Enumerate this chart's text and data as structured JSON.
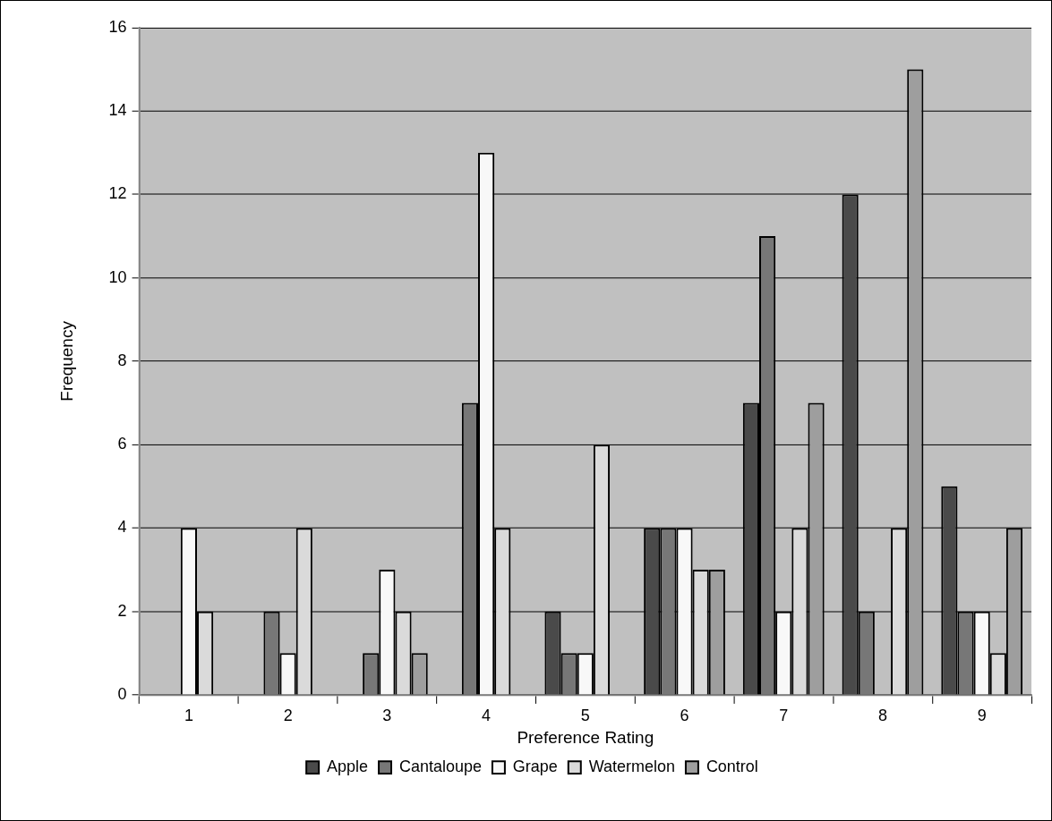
{
  "chart_data": {
    "type": "bar",
    "xlabel": "Preference Rating",
    "ylabel": "Frequency",
    "categories": [
      "1",
      "2",
      "3",
      "4",
      "5",
      "6",
      "7",
      "8",
      "9"
    ],
    "series": [
      {
        "name": "Apple",
        "color": "#4a4a4a",
        "values": [
          0,
          0,
          0,
          0,
          2,
          4,
          7,
          12,
          5
        ]
      },
      {
        "name": "Cantaloupe",
        "color": "#777777",
        "values": [
          0,
          2,
          1,
          7,
          1,
          4,
          11,
          2,
          2
        ]
      },
      {
        "name": "Grape",
        "color": "#f8f8f8",
        "values": [
          4,
          1,
          3,
          13,
          1,
          4,
          2,
          0,
          2
        ]
      },
      {
        "name": "Watermelon",
        "color": "#dadada",
        "values": [
          2,
          4,
          2,
          4,
          6,
          3,
          4,
          4,
          1
        ]
      },
      {
        "name": "Control",
        "color": "#9e9e9e",
        "values": [
          0,
          0,
          1,
          0,
          0,
          3,
          7,
          15,
          4
        ]
      }
    ],
    "ylim": [
      0,
      16
    ],
    "yticks": [
      0,
      2,
      4,
      6,
      8,
      10,
      12,
      14,
      16
    ],
    "grid": "y",
    "legend": "bottom"
  }
}
